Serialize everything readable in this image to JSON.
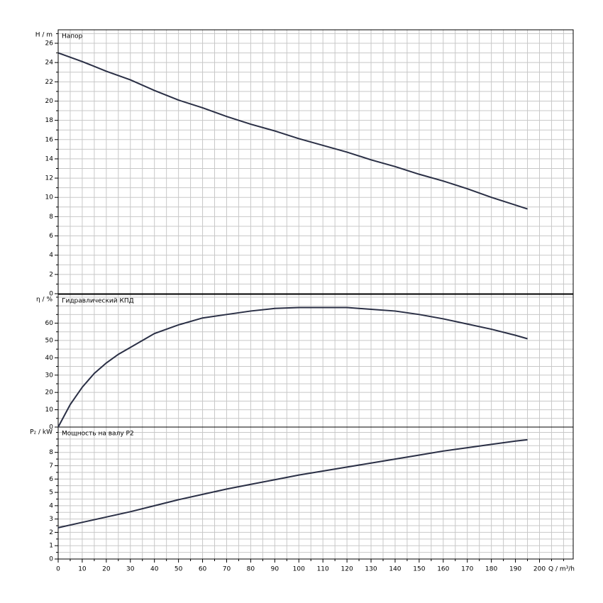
{
  "chart_data": [
    {
      "type": "line",
      "title": "Напор",
      "ylabel": "H / m",
      "ylim": [
        0,
        27.4
      ],
      "yticks": [
        0,
        2,
        4,
        6,
        8,
        10,
        12,
        14,
        16,
        18,
        20,
        22,
        24,
        26
      ],
      "yminor": [
        1,
        3,
        5,
        7,
        9,
        11,
        13,
        15,
        17,
        19,
        21,
        23,
        25,
        27
      ],
      "x": [
        0,
        10,
        20,
        30,
        40,
        50,
        60,
        70,
        80,
        90,
        100,
        110,
        120,
        130,
        140,
        150,
        160,
        170,
        180,
        190,
        195
      ],
      "series": [
        {
          "color": "#2a2f45",
          "values": [
            25,
            24.1,
            23.1,
            22.2,
            21.1,
            20.1,
            19.3,
            18.4,
            17.6,
            16.9,
            16.1,
            15.4,
            14.7,
            13.9,
            13.2,
            12.4,
            11.7,
            10.9,
            10,
            9.2,
            8.8
          ]
        }
      ]
    },
    {
      "type": "line",
      "title": "Гидравлический КПД",
      "ylabel": "η / %",
      "ylim": [
        0,
        76.6
      ],
      "yticks": [
        0,
        10,
        20,
        30,
        40,
        50,
        60
      ],
      "yminor": [
        5,
        15,
        25,
        35,
        45,
        55,
        65,
        70,
        75
      ],
      "x": [
        0,
        5,
        10,
        15,
        20,
        25,
        30,
        40,
        50,
        60,
        70,
        80,
        90,
        100,
        110,
        120,
        130,
        140,
        150,
        160,
        170,
        180,
        190,
        195
      ],
      "series": [
        {
          "color": "#2a2f45",
          "values": [
            0,
            13,
            23,
            31,
            37,
            42,
            46,
            54,
            59,
            63,
            65,
            67,
            68.5,
            69,
            69,
            69,
            68,
            67,
            65,
            62.5,
            59.5,
            56.5,
            53,
            51
          ]
        }
      ]
    },
    {
      "type": "line",
      "title": "Мощность на валу P2",
      "ylabel": "P₂ / kW",
      "ylim": [
        0,
        9.9
      ],
      "yticks": [
        0,
        1,
        2,
        3,
        4,
        5,
        6,
        7,
        8
      ],
      "yminor": [
        0.5,
        1.5,
        2.5,
        3.5,
        4.5,
        5.5,
        6.5,
        7.5,
        8.5,
        9,
        9.5
      ],
      "xlabel": "Q / m³/h",
      "xlim": [
        0,
        214
      ],
      "xticks": [
        0,
        10,
        20,
        30,
        40,
        50,
        60,
        70,
        80,
        90,
        100,
        110,
        120,
        130,
        140,
        150,
        160,
        170,
        180,
        190,
        200
      ],
      "xminor": [
        5,
        15,
        25,
        35,
        45,
        55,
        65,
        75,
        85,
        95,
        105,
        115,
        125,
        135,
        145,
        155,
        165,
        175,
        185,
        195,
        205,
        210
      ],
      "x": [
        0,
        10,
        20,
        30,
        40,
        50,
        60,
        70,
        80,
        90,
        100,
        110,
        120,
        130,
        140,
        150,
        160,
        170,
        180,
        190,
        195
      ],
      "series": [
        {
          "color": "#2a2f45",
          "values": [
            2.35,
            2.75,
            3.15,
            3.55,
            4,
            4.45,
            4.85,
            5.25,
            5.6,
            5.95,
            6.3,
            6.6,
            6.9,
            7.2,
            7.5,
            7.8,
            8.1,
            8.35,
            8.6,
            8.85,
            8.95
          ]
        }
      ]
    }
  ]
}
